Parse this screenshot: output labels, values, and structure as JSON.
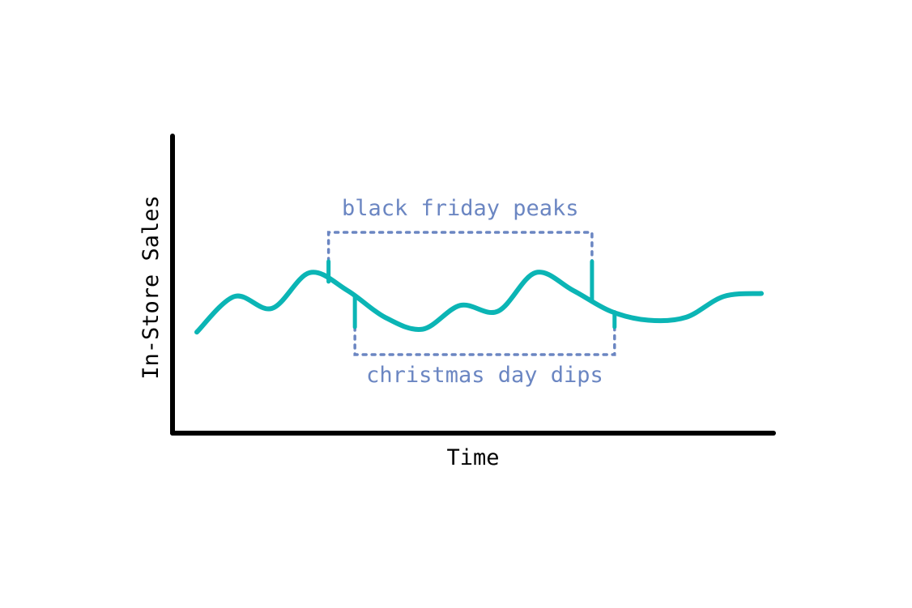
{
  "chart_data": {
    "type": "line",
    "title": "",
    "xlabel": "Time",
    "ylabel": "In-Store Sales",
    "x": [
      0,
      1,
      2,
      3,
      4,
      5,
      6,
      7,
      8,
      9,
      10,
      11,
      12,
      13,
      14,
      15
    ],
    "ylim": [
      0,
      10
    ],
    "grid": false,
    "series": [
      {
        "values": [
          3.4,
          4.6,
          4.2,
          5.4,
          4.8,
          3.9,
          3.5,
          4.3,
          4.1,
          5.4,
          4.8,
          4.1,
          3.8,
          3.9,
          4.6,
          4.7
        ]
      }
    ],
    "annotations": [
      {
        "text": "black friday peaks",
        "between": [
          3.5,
          10.5
        ],
        "position": "above"
      },
      {
        "text": "christmas day dips",
        "between": [
          4.2,
          11.1
        ],
        "position": "below"
      }
    ],
    "colors": {
      "line": "#0bb5b5",
      "axes": "#000000",
      "annotation": "#6b86c2"
    }
  }
}
